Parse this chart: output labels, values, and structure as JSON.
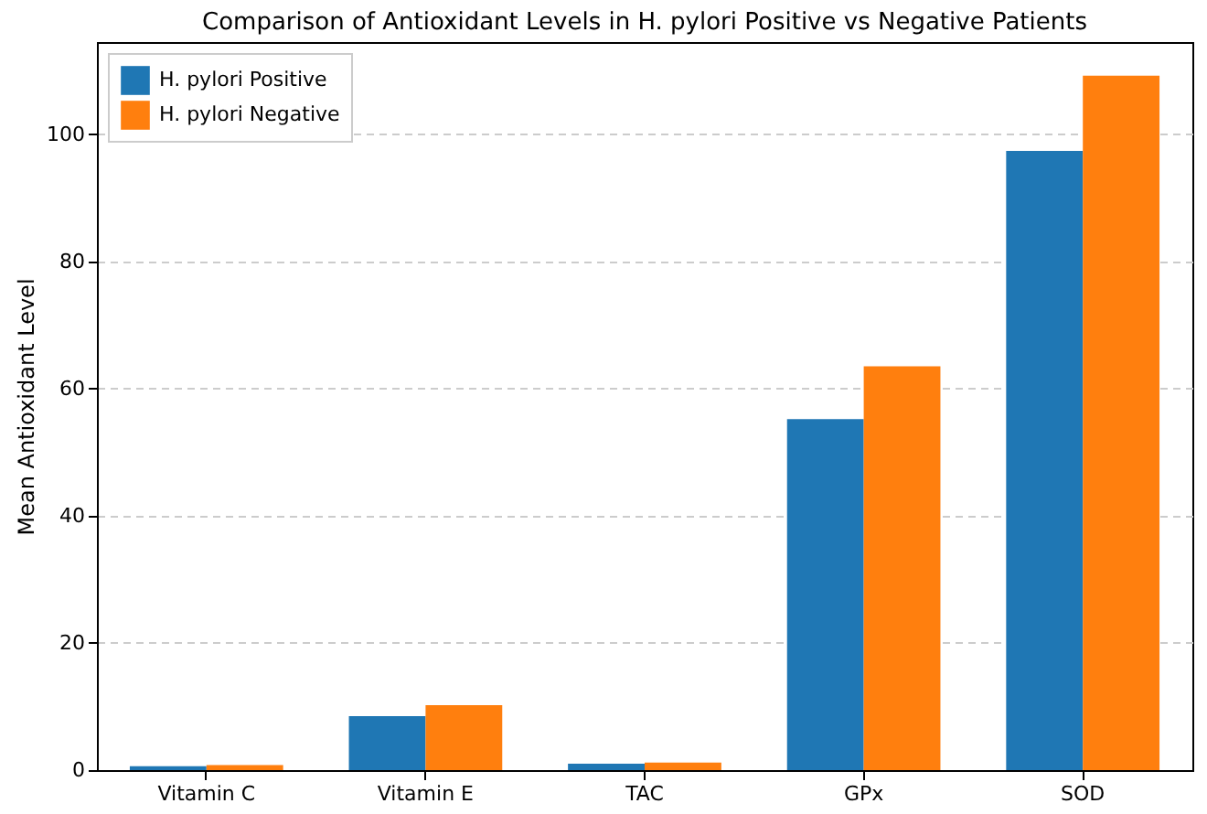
{
  "chart_data": {
    "type": "bar",
    "title": "Comparison of Antioxidant Levels in H. pylori Positive vs Negative Patients",
    "ylabel": "Mean Antioxidant Level",
    "categories": [
      "Vitamin C",
      "Vitamin E",
      "TAC",
      "GPx",
      "SOD"
    ],
    "series": [
      {
        "name": "H. pylori Positive",
        "color": "#1f77b4",
        "values": [
          0.6,
          8.5,
          1.0,
          55.2,
          97.4
        ]
      },
      {
        "name": "H. pylori Negative",
        "color": "#ff7f0e",
        "values": [
          0.8,
          10.2,
          1.2,
          63.5,
          109.2
        ]
      }
    ],
    "ylim": [
      0,
      114.5
    ],
    "yticks": [
      0,
      20,
      40,
      60,
      80,
      100
    ],
    "grid": "y",
    "legend": "top left"
  }
}
